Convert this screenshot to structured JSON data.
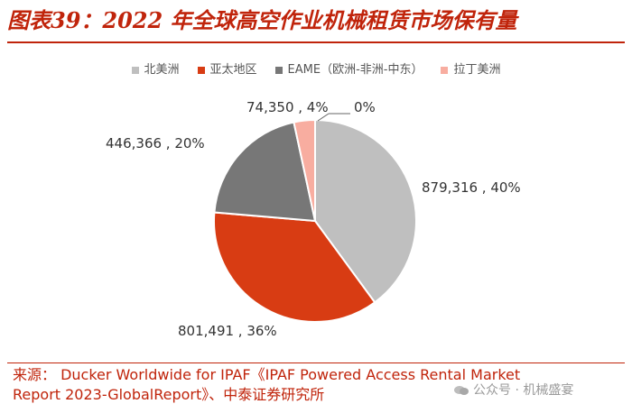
{
  "figure_title": "图表39：2022 年全球高空作业机械租赁市场保有量",
  "source": "来源： Ducker Worldwide for IPAF《IPAF Powered Access Rental Market\nReport 2023-GlobalReport》、中泰证券研究所",
  "watermark": "公众号 · 机械盛宴",
  "chart_data": {
    "type": "pie",
    "legend_position": "top",
    "slices": [
      {
        "name": "北美洲",
        "value": 879316,
        "percent": "40%",
        "label": "879,316 , 40%",
        "color": "#bfbfbf"
      },
      {
        "name": "亚太地区",
        "value": 801491,
        "percent": "36%",
        "label": "801,491 , 36%",
        "color": "#d83c13"
      },
      {
        "name": "EAME（欧洲-非洲-中东）",
        "value": 446366,
        "percent": "20%",
        "label": "446,366 , 20%",
        "color": "#777777"
      },
      {
        "name": "拉丁美洲",
        "value": 74350,
        "percent": "4%",
        "label": "74,350 , 4%",
        "color": "#f8ada0"
      },
      {
        "name": "",
        "value": 0,
        "percent": "0%",
        "label": "0%",
        "color": "#eeeeee"
      }
    ]
  }
}
